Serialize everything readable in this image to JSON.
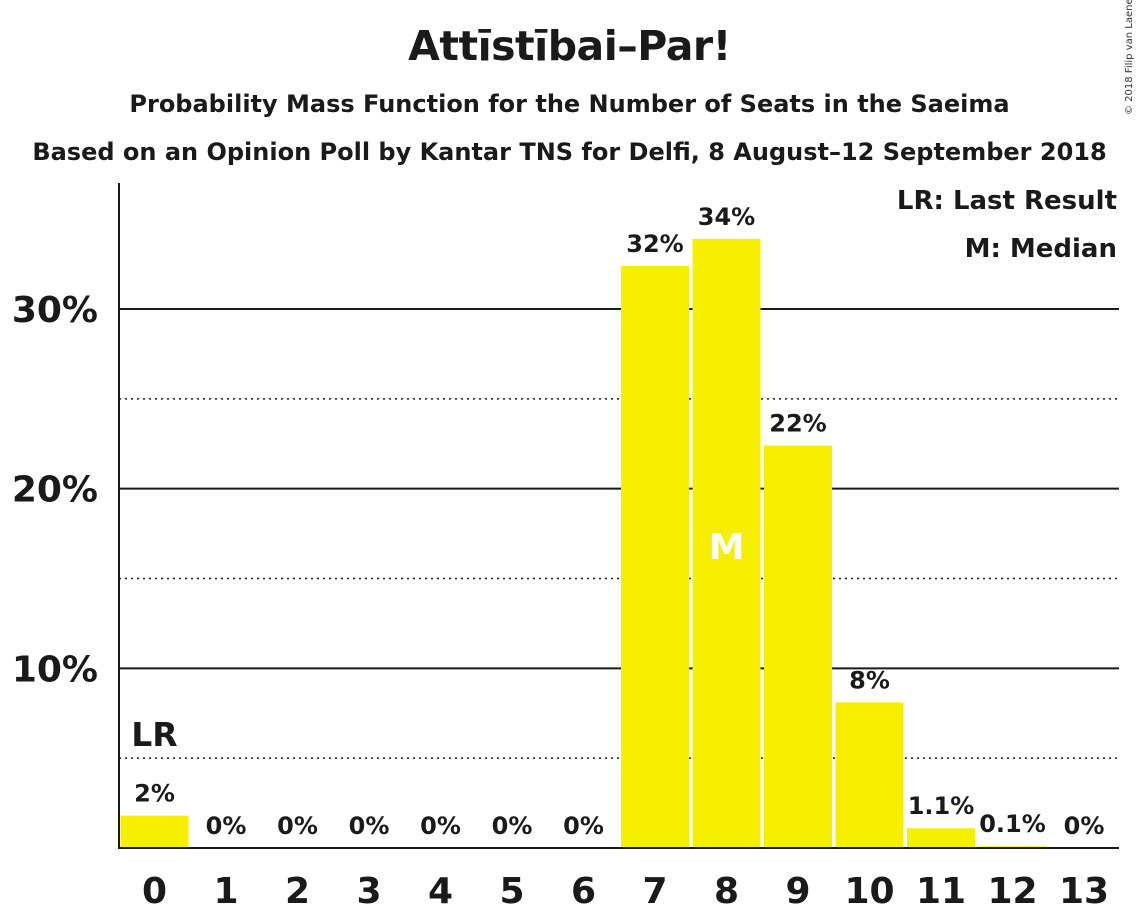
{
  "title": "Attīstībai–Par!",
  "subtitle": "Probability Mass Function for the Number of Seats in the Saeima",
  "subtitle2": "Based on an Opinion Poll by Kantar TNS for Delfi, 8 August–12 September 2018",
  "copyright": "© 2018 Filip van Laenen",
  "colors": {
    "bar": "#f7ef00",
    "text": "#1a1a1a",
    "grid": "#1a1a1a",
    "median_label": "#ffffff"
  },
  "chart_data": {
    "type": "bar",
    "categories": [
      "0",
      "1",
      "2",
      "3",
      "4",
      "5",
      "6",
      "7",
      "8",
      "9",
      "10",
      "11",
      "12",
      "13"
    ],
    "values": [
      1.8,
      0,
      0,
      0,
      0,
      0,
      0,
      32.4,
      33.9,
      22.4,
      8.1,
      1.1,
      0.1,
      0
    ],
    "value_labels": [
      "2%",
      "0%",
      "0%",
      "0%",
      "0%",
      "0%",
      "0%",
      "32%",
      "34%",
      "22%",
      "8%",
      "1.1%",
      "0.1%",
      "0%"
    ],
    "ylim": [
      0,
      37
    ],
    "yticks": [
      10,
      20,
      30
    ],
    "ytick_labels": [
      "10%",
      "20%",
      "30%"
    ],
    "minor_gridlines": [
      5,
      15,
      25
    ],
    "last_result_seats": "0",
    "last_result_marker": "LR",
    "median_seats": "8",
    "median_marker": "M",
    "legend": [
      "LR: Last Result",
      "M: Median"
    ],
    "legend_position": "top-right"
  }
}
